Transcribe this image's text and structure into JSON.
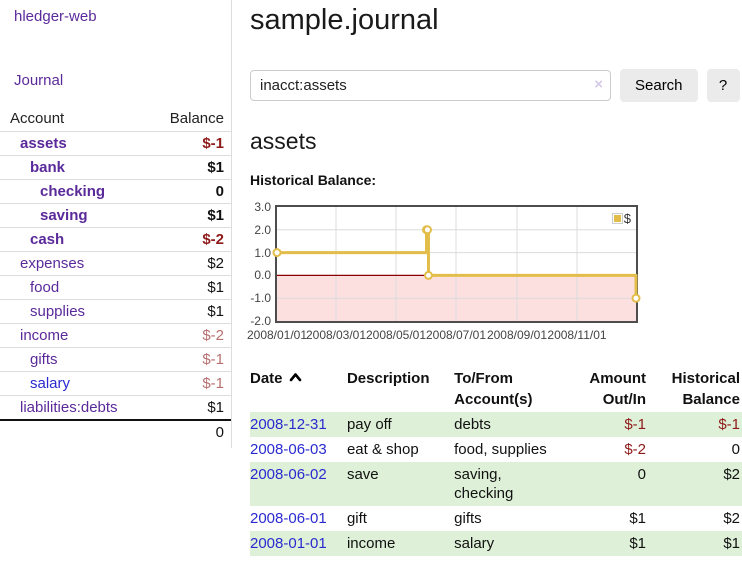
{
  "colors": {
    "link_purple": "#5b2a9a",
    "link_blue": "#2a2ad0",
    "negative_strong": "#8e1a1a",
    "negative_soft": "#b86f6f",
    "row_highlight_green": "#def0d8",
    "chart_line_gold": "#e3bd49",
    "chart_negative_region": "#fcdfdf",
    "chart_zero_line": "#8b0000"
  },
  "sidebar": {
    "brand": "hledger-web",
    "journal_link": "Journal",
    "headers": {
      "account": "Account",
      "balance": "Balance"
    },
    "rows": [
      {
        "account": "assets",
        "balance": "$-1",
        "level": 1,
        "bold": true,
        "balance_class": "neg-strong"
      },
      {
        "account": "bank",
        "balance": "$1",
        "level": 2,
        "bold": true,
        "balance_class": "pos"
      },
      {
        "account": "checking",
        "balance": "0",
        "level": 3,
        "bold": true,
        "balance_class": "pos"
      },
      {
        "account": "saving",
        "balance": "$1",
        "level": 3,
        "bold": true,
        "balance_class": "pos"
      },
      {
        "account": "cash",
        "balance": "$-2",
        "level": 2,
        "bold": true,
        "balance_class": "neg-strong"
      },
      {
        "account": "expenses",
        "balance": "$2",
        "level": 1,
        "bold": false,
        "balance_class": "pos"
      },
      {
        "account": "food",
        "balance": "$1",
        "level": 2,
        "bold": false,
        "balance_class": "pos"
      },
      {
        "account": "supplies",
        "balance": "$1",
        "level": 2,
        "bold": false,
        "balance_class": "pos"
      },
      {
        "account": "income",
        "balance": "$-2",
        "level": 1,
        "bold": false,
        "balance_class": "neg-soft"
      },
      {
        "account": "gifts",
        "balance": "$-1",
        "level": 2,
        "bold": false,
        "balance_class": "neg-soft"
      },
      {
        "account": "salary",
        "balance": "$-1",
        "level": 2,
        "bold": false,
        "balance_class": "neg-soft",
        "blue": true
      },
      {
        "account": "liabilities:debts",
        "balance": "$1",
        "level": 1,
        "bold": false,
        "balance_class": "pos"
      }
    ],
    "total": "0"
  },
  "main": {
    "title": "sample.journal",
    "search": {
      "value": "inacct:assets",
      "placeholder": "",
      "clear_icon": "×",
      "button_label": "Search",
      "help_label": "?"
    },
    "account_heading": "assets",
    "chart_title": "Historical Balance:"
  },
  "chart_data": {
    "type": "line",
    "step": true,
    "title": "Historical Balance",
    "x": [
      "2008-01-01",
      "2008-06-01",
      "2008-06-02",
      "2008-06-03",
      "2008-12-31"
    ],
    "series": [
      {
        "name": "$",
        "values": [
          1,
          2,
          2,
          0,
          -1
        ]
      }
    ],
    "x_range": [
      "2008-01-01",
      "2008-12-31"
    ],
    "ylim": [
      -2,
      3
    ],
    "yticks": [
      "3.0",
      "2.0",
      "1.0",
      "0.0",
      "-1.0",
      "-2.0"
    ],
    "xticks": [
      "2008/01/01",
      "2008/03/01",
      "2008/05/01",
      "2008/07/01",
      "2008/09/01",
      "2008/11/01"
    ],
    "grid": true,
    "legend": {
      "label": "$",
      "position": "top-right"
    }
  },
  "register": {
    "headers": [
      "Date",
      "Description",
      "To/From\nAccount(s)",
      "Amount\nOut/In",
      "Historical\nBalance"
    ],
    "sort_icon": "caret-up",
    "rows": [
      {
        "date": "2008-12-31",
        "description": "pay off",
        "accounts": "debts",
        "amount": "$-1",
        "amount_neg": true,
        "balance": "$-1",
        "balance_neg": true
      },
      {
        "date": "2008-06-03",
        "description": "eat & shop",
        "accounts": "food, supplies",
        "amount": "$-2",
        "amount_neg": true,
        "balance": "0",
        "balance_neg": false
      },
      {
        "date": "2008-06-02",
        "description": "save",
        "accounts": "saving,\nchecking",
        "amount": "0",
        "amount_neg": false,
        "balance": "$2",
        "balance_neg": false
      },
      {
        "date": "2008-06-01",
        "description": "gift",
        "accounts": "gifts",
        "amount": "$1",
        "amount_neg": false,
        "balance": "$2",
        "balance_neg": false
      },
      {
        "date": "2008-01-01",
        "description": "income",
        "accounts": "salary",
        "amount": "$1",
        "amount_neg": false,
        "balance": "$1",
        "balance_neg": false
      }
    ]
  }
}
